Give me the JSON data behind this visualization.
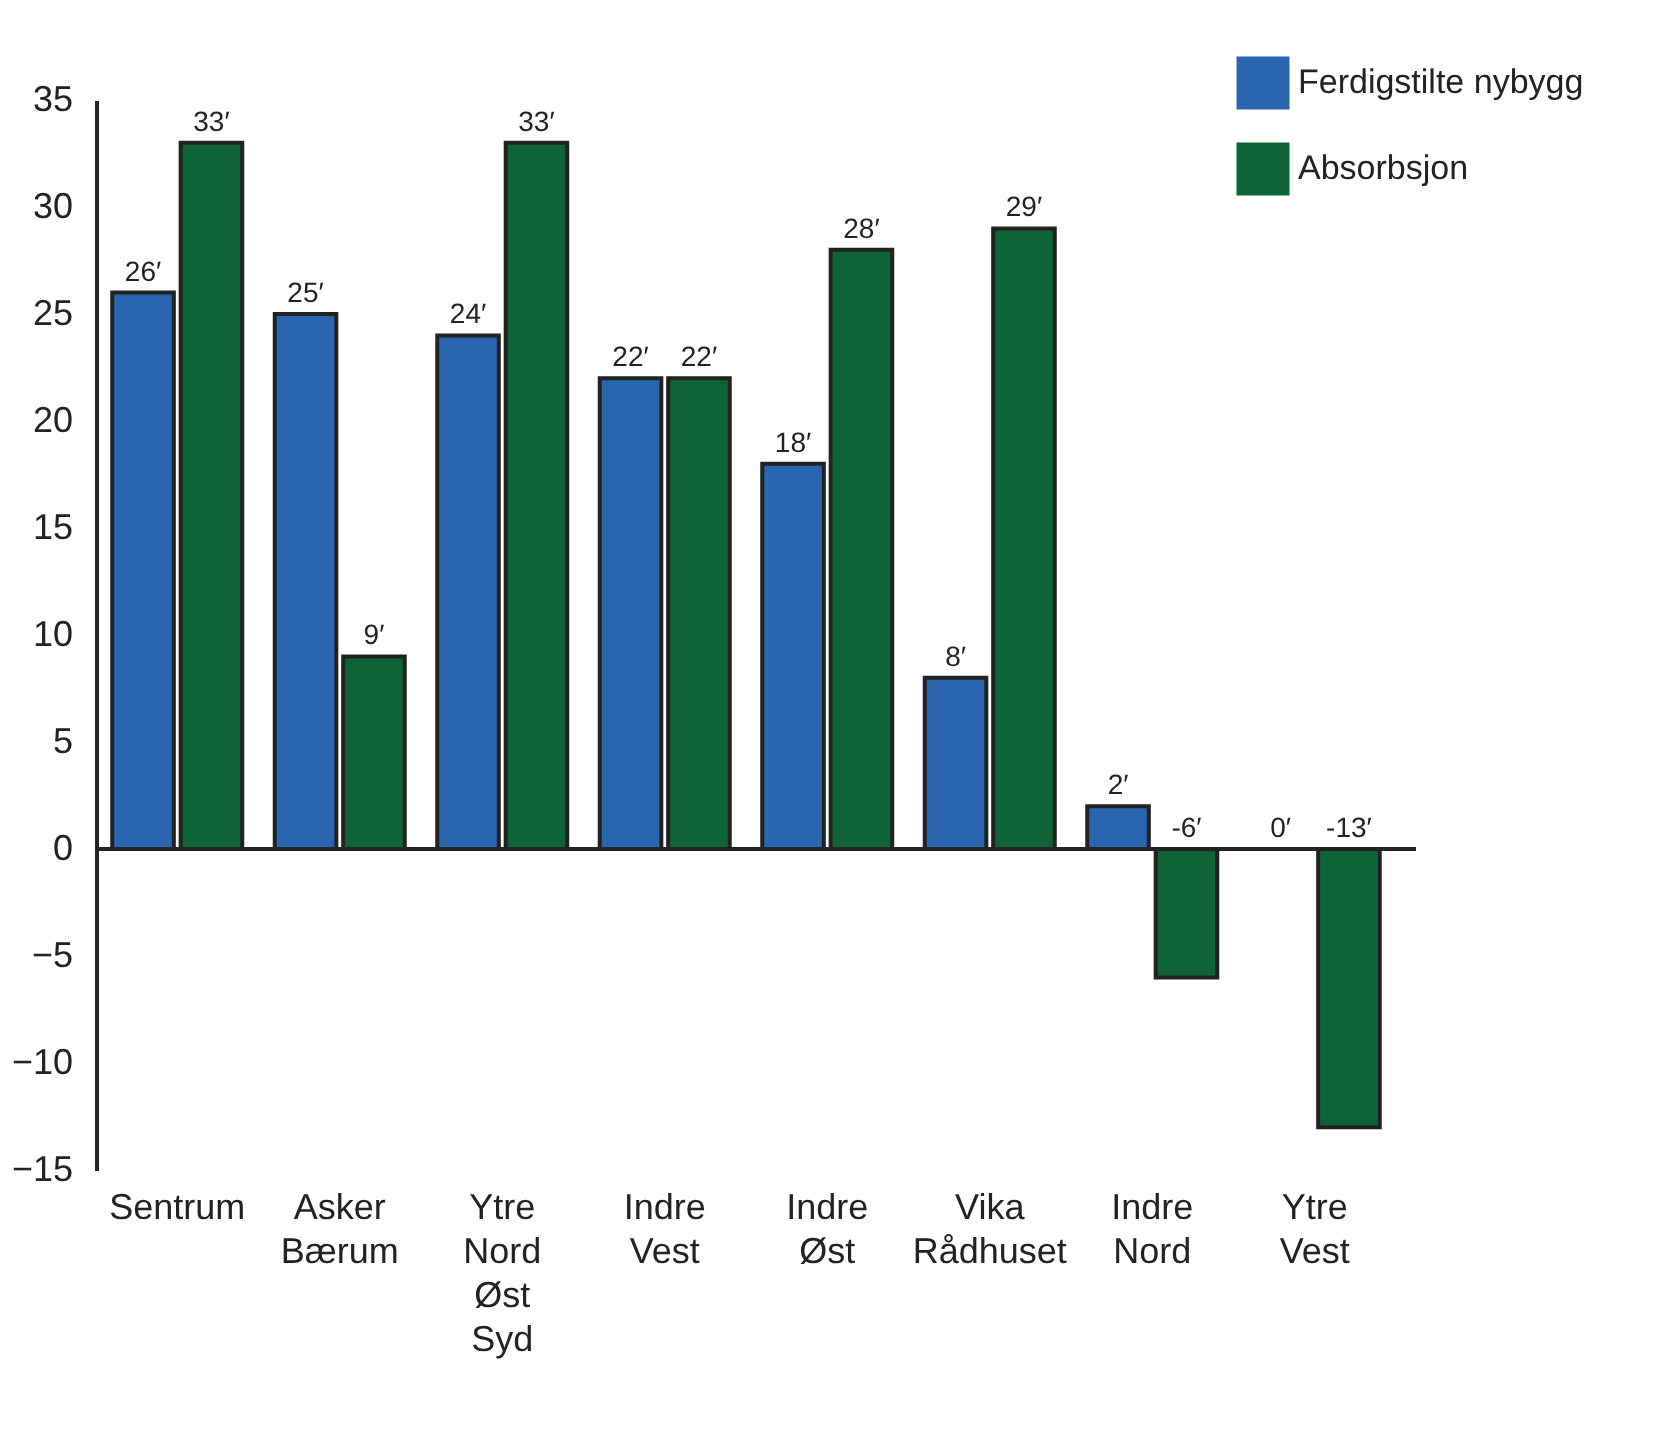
{
  "chart_data": {
    "type": "bar",
    "categories": [
      "Sentrum",
      "Asker\nBærum",
      "Ytre\nNord\nØst\nSyd",
      "Indre\nVest",
      "Indre\nØst",
      "Vika\nRådhuset",
      "Indre\nNord",
      "Ytre\nVest"
    ],
    "series": [
      {
        "name": "Ferdigstilte nybygg",
        "color": "#2a66b0",
        "values": [
          26,
          25,
          24,
          22,
          18,
          8,
          2,
          0
        ],
        "value_labels": [
          "26′",
          "25′",
          "24′",
          "22′",
          "18′",
          "8′",
          "2′",
          "0′"
        ]
      },
      {
        "name": "Absorbsjon",
        "color": "#0e6436",
        "values": [
          33,
          9,
          33,
          22,
          28,
          29,
          -6,
          -13
        ],
        "value_labels": [
          "33′",
          "9′",
          "33′",
          "22′",
          "28′",
          "29′",
          "-6′",
          "-13′"
        ]
      }
    ],
    "ylim": [
      -15,
      35
    ],
    "yticks": [
      -15,
      -10,
      -5,
      0,
      5,
      10,
      15,
      20,
      25,
      30,
      35
    ],
    "ref_lines": [
      {
        "axis": "y",
        "value": 0
      }
    ],
    "legend": "top right",
    "grid": false
  }
}
